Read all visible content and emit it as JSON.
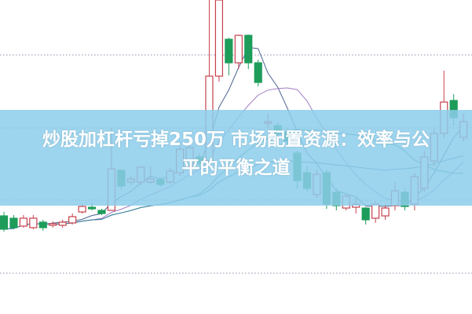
{
  "headline": {
    "line1": "炒股加杠杆亏掉250万 市场配置资源：效率与公",
    "line2": "平的平衡之道"
  },
  "colors": {
    "up": "#c8414c",
    "down": "#1e9c5a",
    "banner": "#8ccdeb",
    "grid": "#8a90a8"
  },
  "chart_data": {
    "type": "candlestick",
    "title": "",
    "xlabel": "",
    "ylabel": "",
    "ylim": [
      0,
      100
    ],
    "grid": "horizontal-dotted",
    "candles": [
      [
        31.25,
        27,
        32.5,
        26.25
      ],
      [
        30.5,
        27.5,
        31.5,
        27
      ],
      [
        28,
        30.5,
        31.5,
        27.5
      ],
      [
        27.5,
        30.5,
        31.5,
        27
      ],
      [
        29.25,
        27.5,
        30,
        26.5
      ],
      [
        28.25,
        28.75,
        29.5,
        27.5
      ],
      [
        28.25,
        29.25,
        30,
        27.5
      ],
      [
        29,
        31,
        32,
        28.5
      ],
      [
        32.5,
        34.25,
        35,
        32
      ],
      [
        34,
        33.5,
        35.5,
        33
      ],
      [
        33,
        32,
        33.5,
        31.5
      ],
      [
        33,
        46.25,
        59.25,
        33
      ],
      [
        45.75,
        40.75,
        46,
        39.5
      ],
      [
        42,
        43,
        44,
        41
      ],
      [
        42,
        46.75,
        47,
        41
      ],
      [
        42,
        43,
        47,
        41.5
      ],
      [
        42.75,
        41.25,
        43.5,
        40.5
      ],
      [
        42,
        45.5,
        46.5,
        41.5
      ],
      [
        45,
        52.5,
        55,
        44
      ],
      [
        47,
        53,
        55,
        46.5
      ],
      [
        50,
        48,
        51,
        47
      ],
      [
        48.75,
        75.75,
        100,
        48
      ],
      [
        75.75,
        100,
        100,
        74
      ],
      [
        87.5,
        80,
        88,
        76
      ],
      [
        80,
        88.75,
        89,
        78
      ],
      [
        88.75,
        80,
        89,
        78
      ],
      [
        80,
        73.75,
        81,
        72.5
      ],
      [
        60.75,
        61.25,
        64,
        59
      ],
      [
        60,
        57.5,
        61,
        55
      ],
      [
        58,
        55,
        59,
        53
      ],
      [
        51.25,
        42.5,
        52,
        40
      ],
      [
        45,
        40,
        47,
        39
      ],
      [
        38,
        44.5,
        46,
        37
      ],
      [
        45,
        35,
        46,
        33.5
      ],
      [
        38.75,
        34.5,
        40,
        33
      ],
      [
        33.75,
        37.5,
        38,
        33
      ],
      [
        34,
        35,
        37,
        32
      ],
      [
        33.75,
        30,
        34,
        28.5
      ],
      [
        30.5,
        35,
        36,
        29
      ],
      [
        31.25,
        33.75,
        35,
        30
      ],
      [
        34.5,
        39.25,
        42,
        33
      ],
      [
        38.75,
        34.25,
        40,
        33
      ],
      [
        35,
        43.75,
        45,
        33
      ],
      [
        40,
        50,
        52,
        39
      ],
      [
        48.75,
        57.5,
        59,
        47
      ],
      [
        57.5,
        67.5,
        77.5,
        56
      ],
      [
        68,
        62.5,
        70,
        60
      ],
      [
        56.25,
        61.25,
        64,
        55
      ]
    ],
    "candle_fields": [
      "open",
      "close",
      "high",
      "low"
    ],
    "moving_averages": [
      {
        "window": 5,
        "color": "#4d6390"
      },
      {
        "window": 10,
        "color": "#a27cc4"
      },
      {
        "window": 20,
        "color": "#2f8f80"
      },
      {
        "window": 40,
        "color": "#3b7fa0"
      }
    ],
    "gridlines": [
      82.5,
      59.25,
      36.25,
      13
    ]
  }
}
